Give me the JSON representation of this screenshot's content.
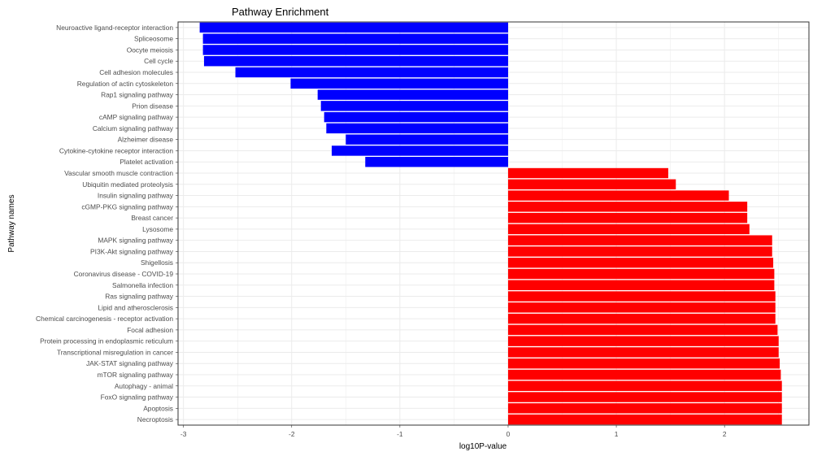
{
  "chart_data": {
    "type": "bar",
    "orientation": "horizontal",
    "title": "Pathway Enrichment",
    "xlabel": "log10P-value",
    "ylabel": "Pathway names",
    "xlim": [
      -3.05,
      2.78
    ],
    "xticks": [
      -3,
      -2,
      -1,
      0,
      1,
      2
    ],
    "xtick_labels": [
      "-3",
      "-2",
      "-1",
      "0",
      "1",
      "2"
    ],
    "grid": true,
    "colors": {
      "negative": "#0000ff",
      "positive": "#ff0000",
      "grid": "#ebebeb",
      "panel_border": "#333333"
    },
    "categories": [
      "Neuroactive ligand-receptor interaction",
      "Spliceosome",
      "Oocyte meiosis",
      "Cell cycle",
      "Cell adhesion molecules",
      "Regulation of actin cytoskeleton",
      "Rap1 signaling pathway",
      "Prion disease",
      "cAMP signaling pathway",
      "Calcium signaling pathway",
      "Alzheimer disease",
      "Cytokine-cytokine receptor interaction",
      "Platelet activation",
      "Vascular smooth muscle contraction",
      "Ubiquitin mediated proteolysis",
      "Insulin signaling pathway",
      "cGMP-PKG signaling pathway",
      "Breast cancer",
      "Lysosome",
      "MAPK signaling pathway",
      "PI3K-Akt signaling pathway",
      "Shigellosis",
      "Coronavirus disease - COVID-19",
      "Salmonella infection",
      "Ras signaling pathway",
      "Lipid and atherosclerosis",
      "Chemical carcinogenesis - receptor activation",
      "Focal adhesion",
      "Protein processing in endoplasmic reticulum",
      "Transcriptional misregulation in cancer",
      "JAK-STAT signaling pathway",
      "mTOR signaling pathway",
      "Autophagy - animal",
      "FoxO signaling pathway",
      "Apoptosis",
      "Necroptosis"
    ],
    "values": [
      -2.85,
      -2.82,
      -2.82,
      -2.81,
      -2.52,
      -2.01,
      -1.76,
      -1.73,
      -1.7,
      -1.68,
      -1.5,
      -1.63,
      -1.32,
      1.48,
      1.55,
      2.04,
      2.21,
      2.21,
      2.23,
      2.44,
      2.44,
      2.45,
      2.46,
      2.46,
      2.47,
      2.47,
      2.47,
      2.49,
      2.5,
      2.5,
      2.51,
      2.52,
      2.53,
      2.53,
      2.53,
      2.53
    ]
  }
}
